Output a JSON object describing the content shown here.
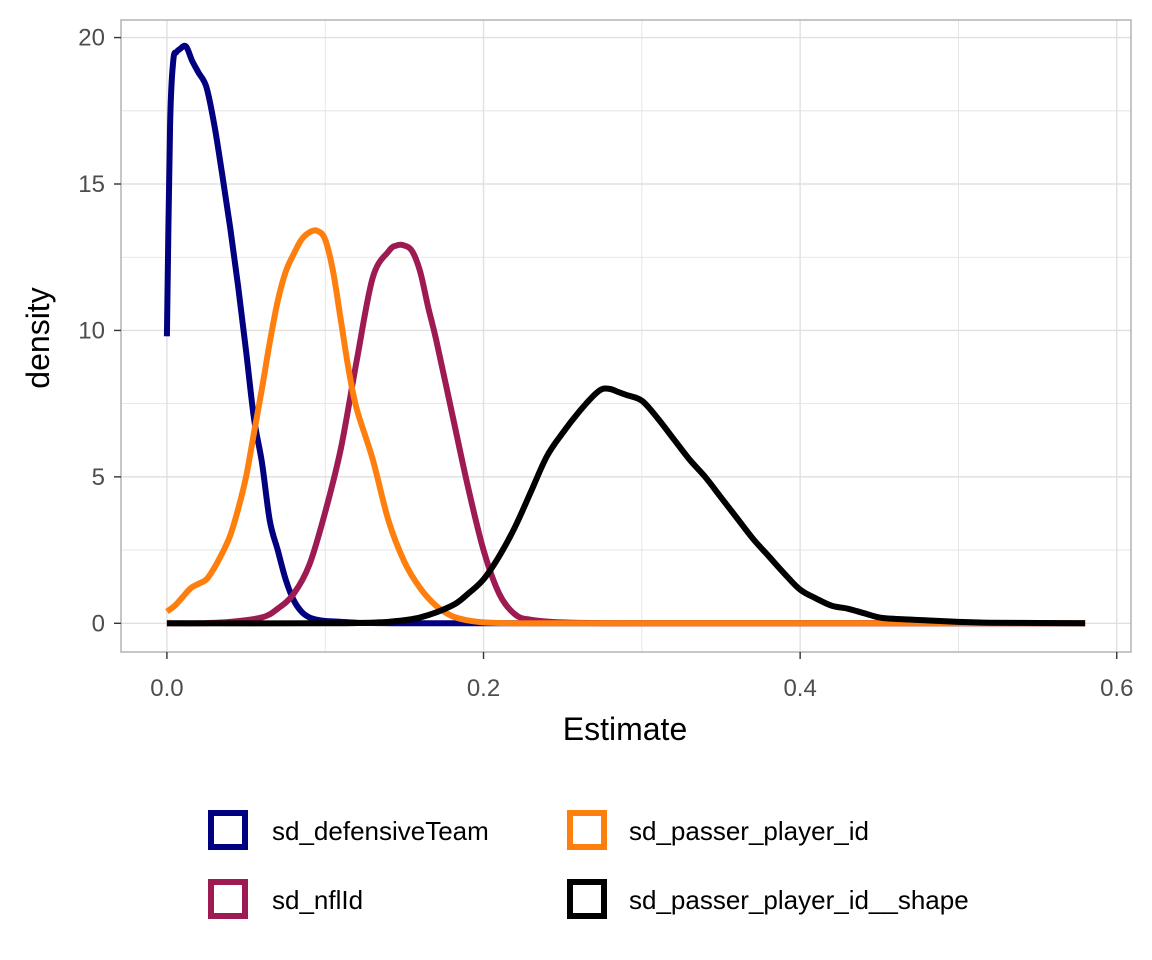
{
  "chart_data": {
    "type": "line",
    "xlabel": "Estimate",
    "ylabel": "density",
    "xlim": [
      -0.029,
      0.609
    ],
    "ylim": [
      -0.98,
      20.6
    ],
    "x_ticks": [
      0.0,
      0.1,
      0.2,
      0.3,
      0.4,
      0.5,
      0.6
    ],
    "x_tick_labels": [
      "0.0",
      "",
      "0.2",
      "",
      "0.4",
      "",
      "0.6"
    ],
    "y_ticks": [
      0,
      2.5,
      5,
      7.5,
      10,
      12.5,
      15,
      17.5,
      20
    ],
    "y_tick_labels": [
      "0",
      "",
      "5",
      "",
      "10",
      "",
      "15",
      "",
      "20"
    ],
    "grid": true,
    "legend_position": "bottom",
    "colors": {
      "sd_defensiveTeam": "#000080",
      "sd_nflId": "#9e1a52",
      "sd_passer_player_id": "#ff7f0e",
      "sd_passer_player_id__shape": "#000000",
      "grid": "#e0e0e0",
      "panel_border": "#b3b3b3"
    },
    "legend_order": [
      "sd_defensiveTeam",
      "sd_passer_player_id",
      "sd_nflId",
      "sd_passer_player_id__shape"
    ],
    "series": [
      {
        "name": "sd_defensiveTeam",
        "x": [
          0,
          0.002,
          0.004,
          0.006,
          0.008,
          0.012,
          0.016,
          0.02,
          0.025,
          0.03,
          0.035,
          0.04,
          0.045,
          0.05,
          0.055,
          0.06,
          0.065,
          0.07,
          0.075,
          0.08,
          0.085,
          0.09,
          0.095,
          0.1,
          0.11,
          0.12,
          0.13,
          0.15,
          0.2,
          0.3,
          0.58
        ],
        "y": [
          9.8,
          17.0,
          19.2,
          19.5,
          19.6,
          19.7,
          19.2,
          18.8,
          18.3,
          17.0,
          15.3,
          13.5,
          11.5,
          9.3,
          7.0,
          5.5,
          3.5,
          2.5,
          1.5,
          0.8,
          0.4,
          0.2,
          0.12,
          0.08,
          0.05,
          0.02,
          0.01,
          0.0,
          0.0,
          0.0,
          0.0
        ]
      },
      {
        "name": "sd_nflId",
        "x": [
          0,
          0.02,
          0.04,
          0.06,
          0.07,
          0.08,
          0.09,
          0.1,
          0.11,
          0.12,
          0.13,
          0.14,
          0.145,
          0.15,
          0.155,
          0.16,
          0.165,
          0.17,
          0.18,
          0.19,
          0.2,
          0.21,
          0.22,
          0.23,
          0.25,
          0.28,
          0.3,
          0.58
        ],
        "y": [
          0.0,
          0.0,
          0.05,
          0.2,
          0.5,
          1.0,
          2.0,
          3.8,
          6.0,
          9.0,
          11.8,
          12.7,
          12.9,
          12.9,
          12.7,
          12.0,
          10.8,
          9.7,
          7.2,
          4.7,
          2.5,
          1.0,
          0.3,
          0.12,
          0.03,
          0.0,
          0.0,
          0.0
        ]
      },
      {
        "name": "sd_passer_player_id",
        "x": [
          0,
          0.005,
          0.01,
          0.015,
          0.02,
          0.025,
          0.03,
          0.035,
          0.04,
          0.045,
          0.05,
          0.055,
          0.06,
          0.065,
          0.07,
          0.075,
          0.08,
          0.085,
          0.09,
          0.095,
          0.1,
          0.105,
          0.11,
          0.115,
          0.12,
          0.13,
          0.14,
          0.15,
          0.16,
          0.17,
          0.18,
          0.19,
          0.2,
          0.21,
          0.22,
          0.24,
          0.3,
          0.58
        ],
        "y": [
          0.4,
          0.6,
          0.9,
          1.2,
          1.35,
          1.5,
          1.9,
          2.4,
          3.0,
          3.9,
          5.0,
          6.5,
          8.0,
          9.6,
          11.0,
          12.0,
          12.6,
          13.1,
          13.35,
          13.4,
          13.1,
          12.0,
          10.3,
          8.6,
          7.3,
          5.6,
          3.5,
          2.1,
          1.2,
          0.6,
          0.25,
          0.1,
          0.03,
          0.01,
          0.0,
          0.0,
          0.0,
          0.0
        ]
      },
      {
        "name": "sd_passer_player_id__shape",
        "x": [
          0,
          0.1,
          0.12,
          0.14,
          0.16,
          0.18,
          0.19,
          0.2,
          0.21,
          0.22,
          0.23,
          0.24,
          0.25,
          0.26,
          0.27,
          0.275,
          0.28,
          0.285,
          0.29,
          0.3,
          0.31,
          0.32,
          0.33,
          0.34,
          0.35,
          0.36,
          0.37,
          0.38,
          0.39,
          0.4,
          0.41,
          0.42,
          0.43,
          0.44,
          0.45,
          0.46,
          0.48,
          0.5,
          0.52,
          0.55,
          0.58
        ],
        "y": [
          0.0,
          0.0,
          0.01,
          0.05,
          0.2,
          0.6,
          1.0,
          1.5,
          2.3,
          3.3,
          4.5,
          5.7,
          6.5,
          7.2,
          7.8,
          8.0,
          8.0,
          7.9,
          7.8,
          7.6,
          7.0,
          6.3,
          5.6,
          5.0,
          4.3,
          3.6,
          2.9,
          2.3,
          1.7,
          1.15,
          0.85,
          0.6,
          0.5,
          0.35,
          0.2,
          0.15,
          0.1,
          0.05,
          0.02,
          0.01,
          0.0
        ]
      }
    ]
  }
}
